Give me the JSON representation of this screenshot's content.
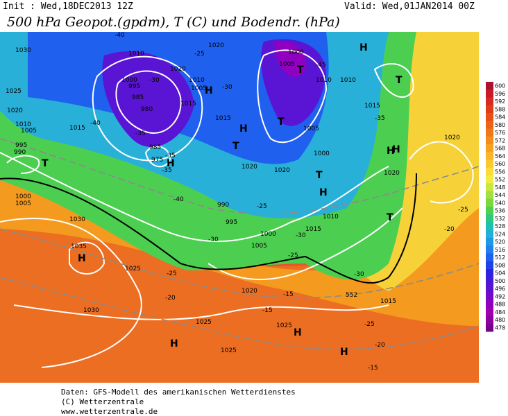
{
  "header": {
    "init": "Init : Wed,18DEC2013 12Z",
    "valid": "Valid: Wed,01JAN2014 00Z",
    "title": "500 hPa Geopot.(gpdm), T (C) und Bodendr. (hPa)"
  },
  "map_labels": [
    "1030",
    "1025",
    "1020",
    "1010",
    "1005",
    "1015",
    "995",
    "990",
    "T",
    "1000",
    "1005",
    "-40",
    "1010",
    "1000",
    "995",
    "-30",
    "985",
    "980",
    "-35",
    "-40",
    "985",
    "975",
    "-35",
    "-25",
    "1020",
    "1010",
    "1005",
    "1015",
    "H",
    "H",
    "1020",
    "-30",
    "T",
    "1000",
    "1005",
    "-45",
    "T",
    "H",
    "1010",
    "1015",
    "-35",
    "T",
    "H",
    "1020",
    "T",
    "1010",
    "1005",
    "1000",
    "T",
    "1015",
    "990",
    "995",
    "-40",
    "-25",
    "1000",
    "1005",
    "1010",
    "1015",
    "-30",
    "-25",
    "-20",
    "-30",
    "1015",
    "T",
    "H",
    "1020",
    "-25",
    "H",
    "1035",
    "H",
    "-25",
    "-20",
    "1030",
    "1025",
    "-15",
    "1020",
    "1025",
    "-15",
    "H",
    "H",
    "-25",
    "-20",
    "1025",
    "H",
    "-15",
    "H",
    "1020",
    "1020",
    "1030",
    "1025",
    "-30",
    "-35",
    "552"
  ],
  "colorbar": {
    "levels": [
      600,
      596,
      592,
      588,
      584,
      580,
      576,
      572,
      568,
      564,
      560,
      556,
      552,
      548,
      544,
      540,
      536,
      532,
      528,
      524,
      520,
      516,
      512,
      508,
      504,
      500,
      496,
      492,
      488,
      484,
      480,
      478
    ],
    "colors": [
      "#b01030",
      "#c81a28",
      "#d82a20",
      "#e03c18",
      "#e85018",
      "#ec6418",
      "#f07818",
      "#f48c1c",
      "#f8a020",
      "#fcb428",
      "#fcc830",
      "#fcdc38",
      "#f0ec40",
      "#c8e840",
      "#a0e040",
      "#78d840",
      "#50d050",
      "#30c880",
      "#20c0b0",
      "#20b0d8",
      "#2098e8",
      "#2080f0",
      "#2060f0",
      "#2040e8",
      "#3020e0",
      "#4818d8",
      "#6010d0",
      "#7808c8",
      "#9000c0",
      "#a000b0",
      "#9000a0",
      "#7a0090"
    ]
  },
  "footer": [
    "Daten: GFS-Modell des amerikanischen Wetterdienstes",
    "(C) Wetterzentrale",
    "www.wetterzentrale.de"
  ]
}
